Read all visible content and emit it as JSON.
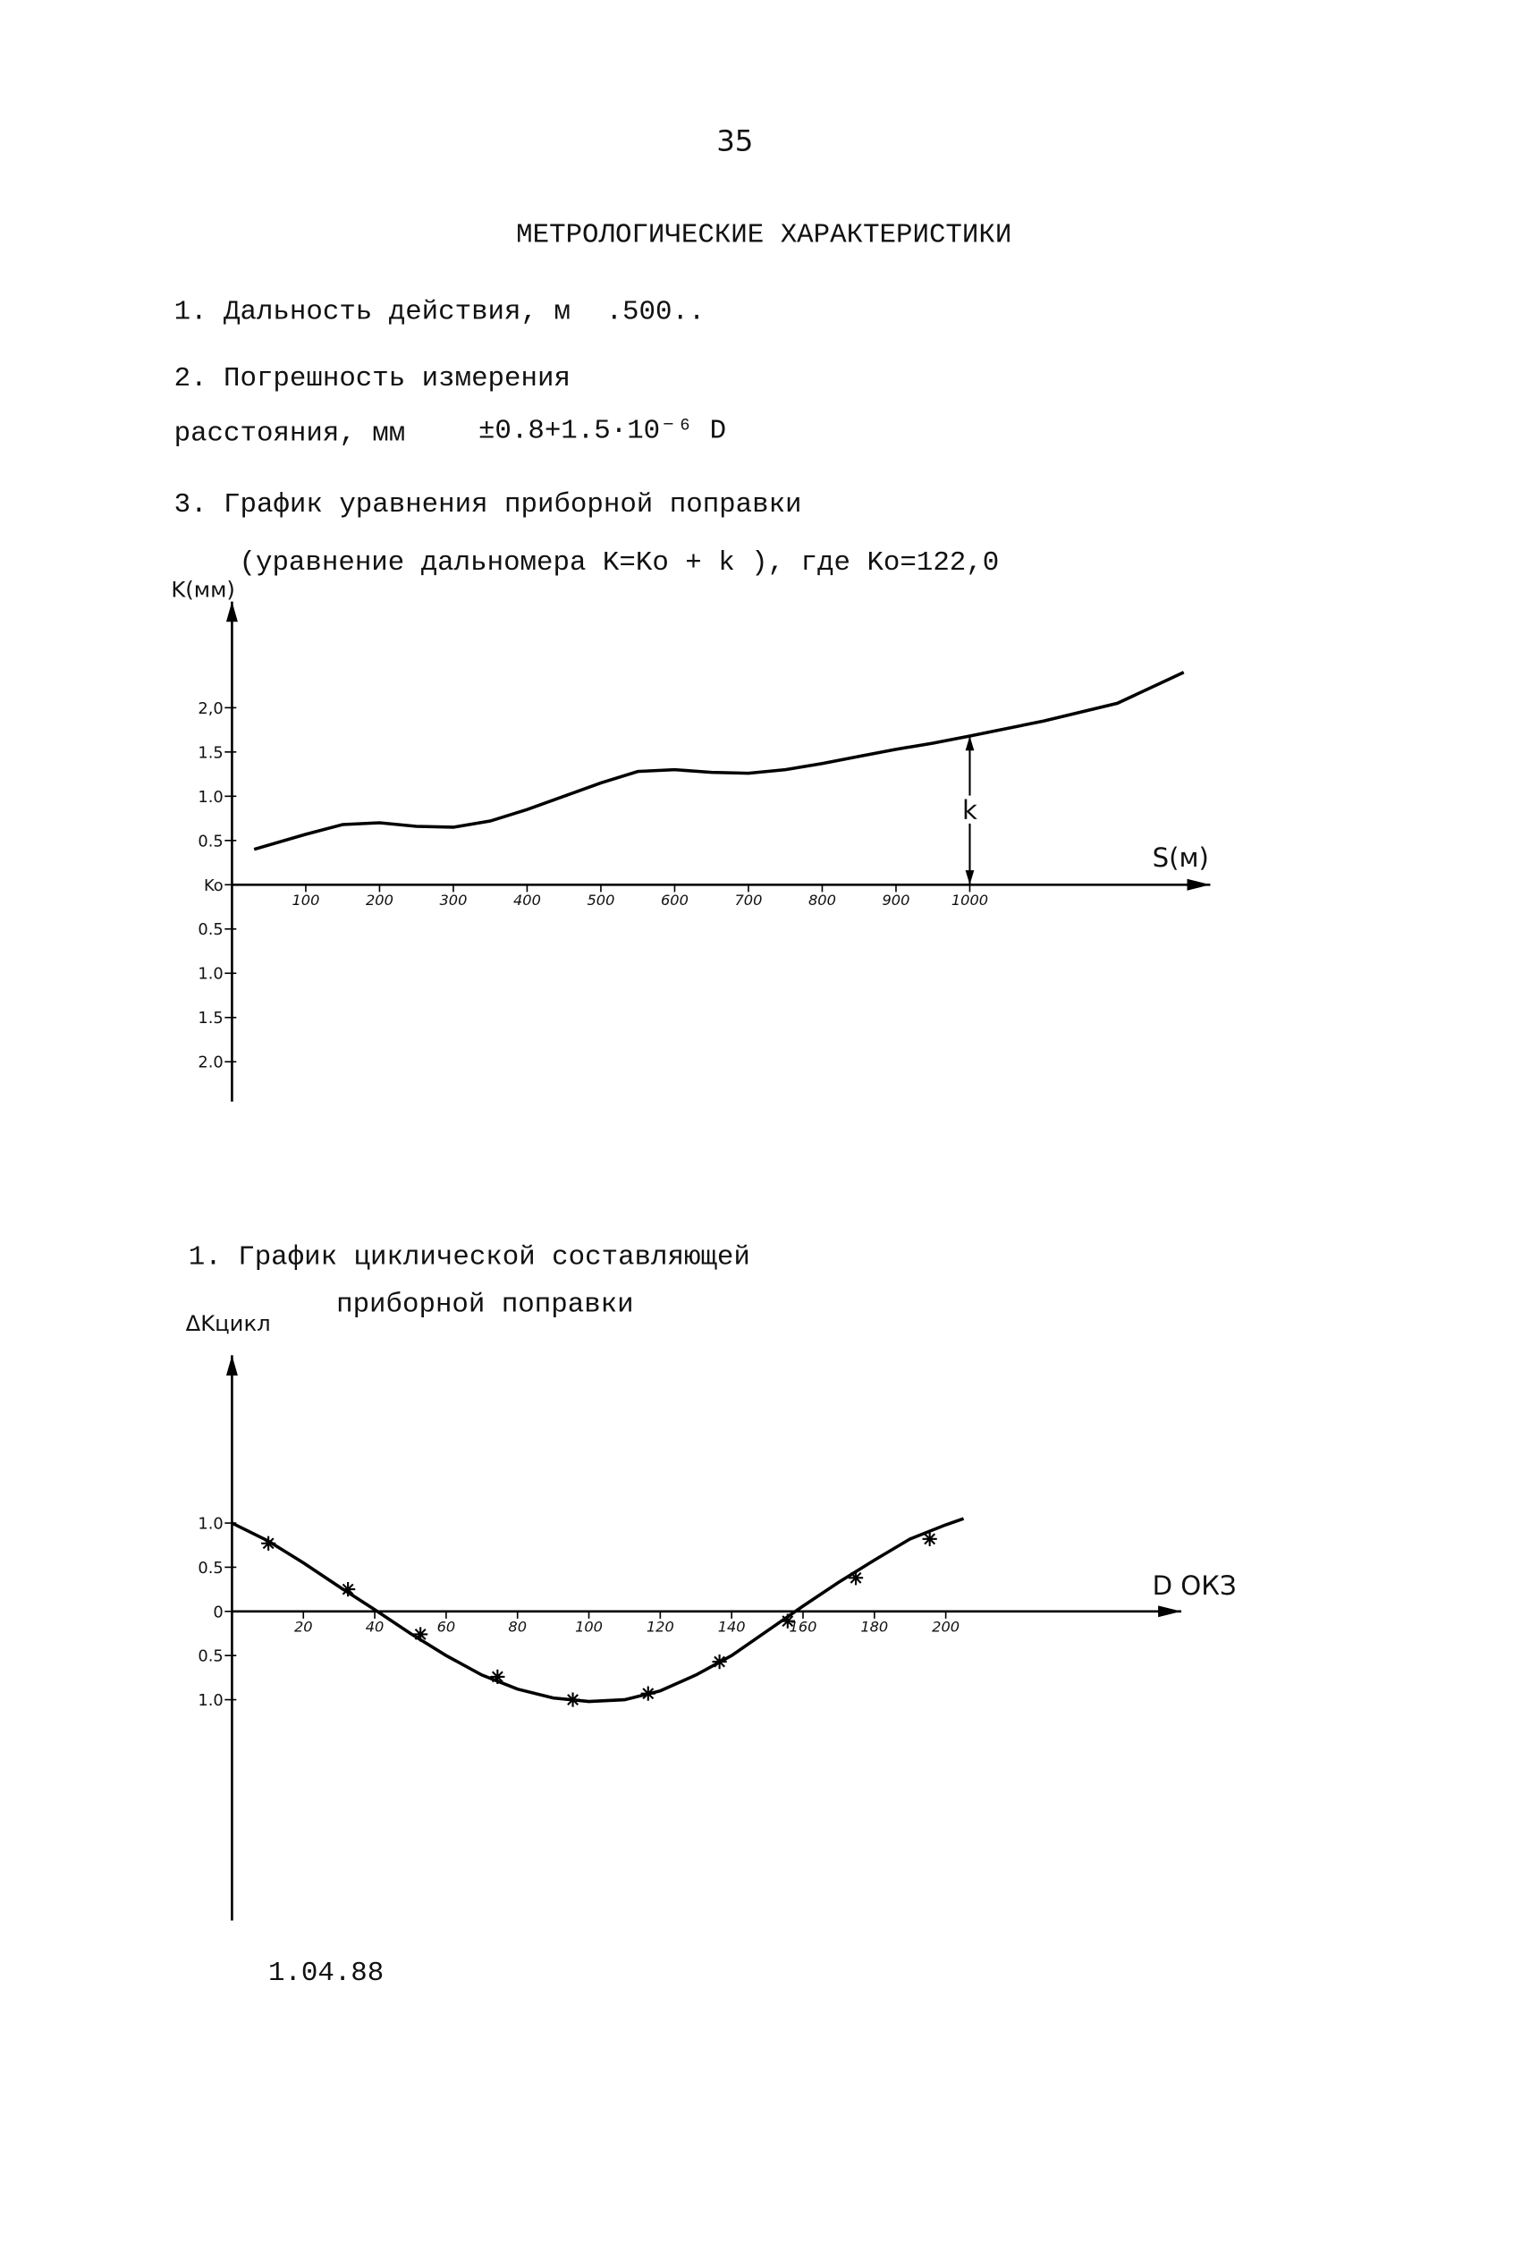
{
  "page_number": "35",
  "title": "МЕТРОЛОГИЧЕСКИЕ ХАРАКТЕРИСТИКИ",
  "items": [
    {
      "label": "1. Дальность действия, м",
      "value": ".500.."
    },
    {
      "label": "2. Погрешность измерения"
    },
    {
      "label": "расстояния, мм",
      "value": "±0.8+1.5·10⁻⁶ D"
    },
    {
      "label": "3. График уравнения приборной поправки"
    },
    {
      "label": "(уравнение дальномера K=Ko + k ), где Ko=122,0"
    }
  ],
  "chart2_caption": [
    "1. График циклической составляющей",
    "приборной поправки"
  ],
  "date": "1.04.88",
  "chart_data": [
    {
      "type": "line",
      "color": "#000",
      "y_label": "K(мм)",
      "x_label": "S(м)",
      "xlim": [
        0,
        1326
      ],
      "ylim": [
        -2.45,
        3.2
      ],
      "xticks": [
        100,
        200,
        300,
        400,
        500,
        600,
        700,
        800,
        900,
        1000
      ],
      "yticks": [
        {
          "value": 2,
          "label": "2,0"
        },
        {
          "value": 1.5,
          "label": "1.5"
        },
        {
          "value": 1,
          "label": "1.0"
        },
        {
          "value": 0.5,
          "label": "0.5"
        },
        {
          "value": 0,
          "label": "Ko"
        },
        {
          "value": -0.5,
          "label": "0.5"
        },
        {
          "value": -1,
          "label": "1.0"
        },
        {
          "value": -1.5,
          "label": "1.5"
        },
        {
          "value": -2,
          "label": "2.0"
        }
      ],
      "series": [
        {
          "color": "#000",
          "x": [
            30,
            100,
            150,
            200,
            250,
            300,
            350,
            400,
            450,
            500,
            550,
            600,
            650,
            700,
            750,
            800,
            850,
            900,
            950,
            1000,
            1100,
            1200,
            1290
          ],
          "values": [
            0.4,
            0.57,
            0.68,
            0.7,
            0.66,
            0.65,
            0.72,
            0.85,
            1.0,
            1.15,
            1.28,
            1.3,
            1.27,
            1.26,
            1.3,
            1.37,
            1.45,
            1.53,
            1.6,
            1.68,
            1.85,
            2.05,
            2.4
          ]
        }
      ],
      "annotations": [
        {
          "text": "k",
          "x": 1000,
          "y": 1.68
        }
      ]
    },
    {
      "type": "line",
      "color": "#000",
      "y_label": "ΔKцикл",
      "x_label": "D ОКЗ",
      "xlim": [
        0,
        266
      ],
      "ylim": [
        -3.5,
        2.9
      ],
      "xticks": [
        20,
        40,
        60,
        80,
        100,
        120,
        140,
        160,
        180,
        200
      ],
      "yticks": [
        {
          "value": 1,
          "label": "1.0"
        },
        {
          "value": 0.5,
          "label": "0.5"
        },
        0,
        {
          "value": -0.5,
          "label": "0.5"
        },
        {
          "value": -1,
          "label": "1.0"
        }
      ],
      "series": [
        {
          "color": "#000",
          "x": [
            0,
            10,
            20,
            30,
            40,
            50,
            60,
            70,
            80,
            90,
            100,
            110,
            120,
            130,
            140,
            150,
            160,
            170,
            180,
            190,
            200,
            205
          ],
          "values": [
            1.0,
            0.8,
            0.55,
            0.28,
            0.02,
            -0.25,
            -0.5,
            -0.72,
            -0.88,
            -0.98,
            -1.02,
            -1.0,
            -0.9,
            -0.72,
            -0.5,
            -0.22,
            0.06,
            0.33,
            0.58,
            0.82,
            0.98,
            1.05
          ]
        },
        {
          "color": "#000",
          "marker": "asterisk",
          "x": [
            10.2,
            32.5,
            52.8,
            74.4,
            95.5,
            116.6,
            136.6,
            155.7,
            174.8,
            195.5
          ],
          "values": [
            0.77,
            0.25,
            -0.26,
            -0.74,
            -1.0,
            -0.93,
            -0.57,
            -0.11,
            0.38,
            0.82
          ]
        }
      ]
    }
  ]
}
